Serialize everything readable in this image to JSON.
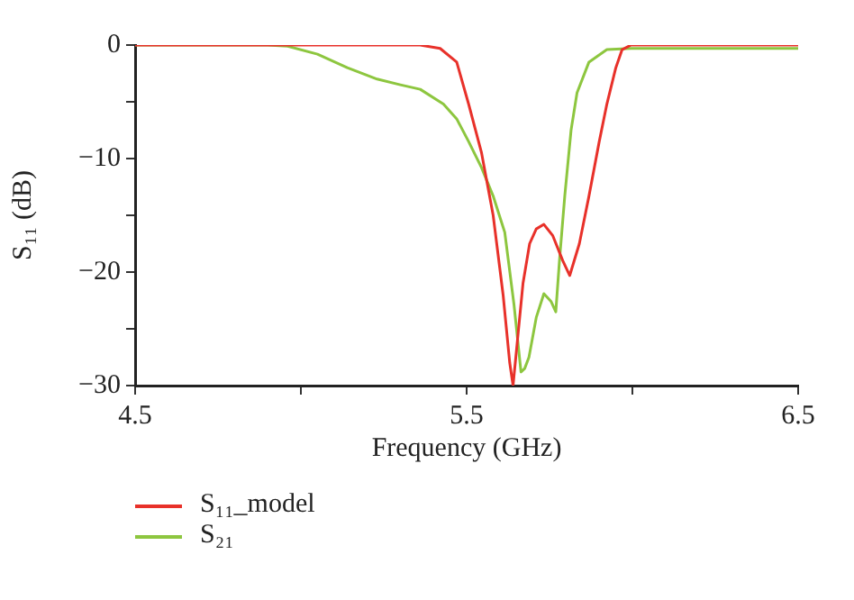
{
  "chart_data": {
    "type": "line",
    "xlabel": "Frequency (GHz)",
    "ylabel": "S₁₁ (dB)",
    "xlim": [
      4.5,
      6.5
    ],
    "xticks": [
      4.5,
      {
        "value": 5.0,
        "label": null
      },
      5.5,
      {
        "value": 6.0,
        "label": null
      },
      6.5
    ],
    "ylim": [
      -30,
      0
    ],
    "yticks": [
      0,
      {
        "value": -5,
        "label": null
      },
      -10,
      {
        "value": -15,
        "label": null
      },
      -20,
      {
        "value": -25,
        "label": null
      },
      -30
    ],
    "grid": false,
    "legend": "bottom left",
    "marker": "none",
    "line_style": "solid",
    "series": [
      {
        "name": "S₁₁_model",
        "color": "#e8312a",
        "x": [
          4.5,
          5.2,
          5.36,
          5.42,
          5.47,
          5.506,
          5.545,
          5.58,
          5.61,
          5.63,
          5.64,
          5.65,
          5.67,
          5.69,
          5.71,
          5.733,
          5.76,
          5.79,
          5.811,
          5.84,
          5.869,
          5.9,
          5.923,
          5.95,
          5.969,
          5.996,
          6.2,
          6.5
        ],
        "values": [
          0,
          0,
          0,
          -0.3,
          -1.5,
          -5.2,
          -9.5,
          -15,
          -22,
          -28,
          -30,
          -27,
          -21,
          -17.5,
          -16.2,
          -15.8,
          -16.8,
          -19,
          -20.3,
          -17.5,
          -13.3,
          -8.5,
          -5.2,
          -2,
          -0.4,
          0,
          0,
          0
        ]
      },
      {
        "name": "S₂₁",
        "color": "#8dc63f",
        "x": [
          4.5,
          4.9,
          4.96,
          5.05,
          5.14,
          5.23,
          5.3,
          5.36,
          5.43,
          5.47,
          5.506,
          5.545,
          5.58,
          5.615,
          5.643,
          5.664,
          5.675,
          5.688,
          5.71,
          5.733,
          5.755,
          5.769,
          5.78,
          5.796,
          5.815,
          5.833,
          5.869,
          5.923,
          5.996,
          6.5
        ],
        "values": [
          0,
          0,
          -0.1,
          -0.8,
          -2,
          -3,
          -3.5,
          -3.9,
          -5.2,
          -6.5,
          -8.5,
          -10.8,
          -13.3,
          -16.5,
          -22.9,
          -28.8,
          -28.5,
          -27.5,
          -24,
          -21.9,
          -22.6,
          -23.5,
          -19,
          -13.3,
          -7.5,
          -4.2,
          -1.5,
          -0.4,
          -0.3,
          -0.3
        ]
      }
    ]
  }
}
